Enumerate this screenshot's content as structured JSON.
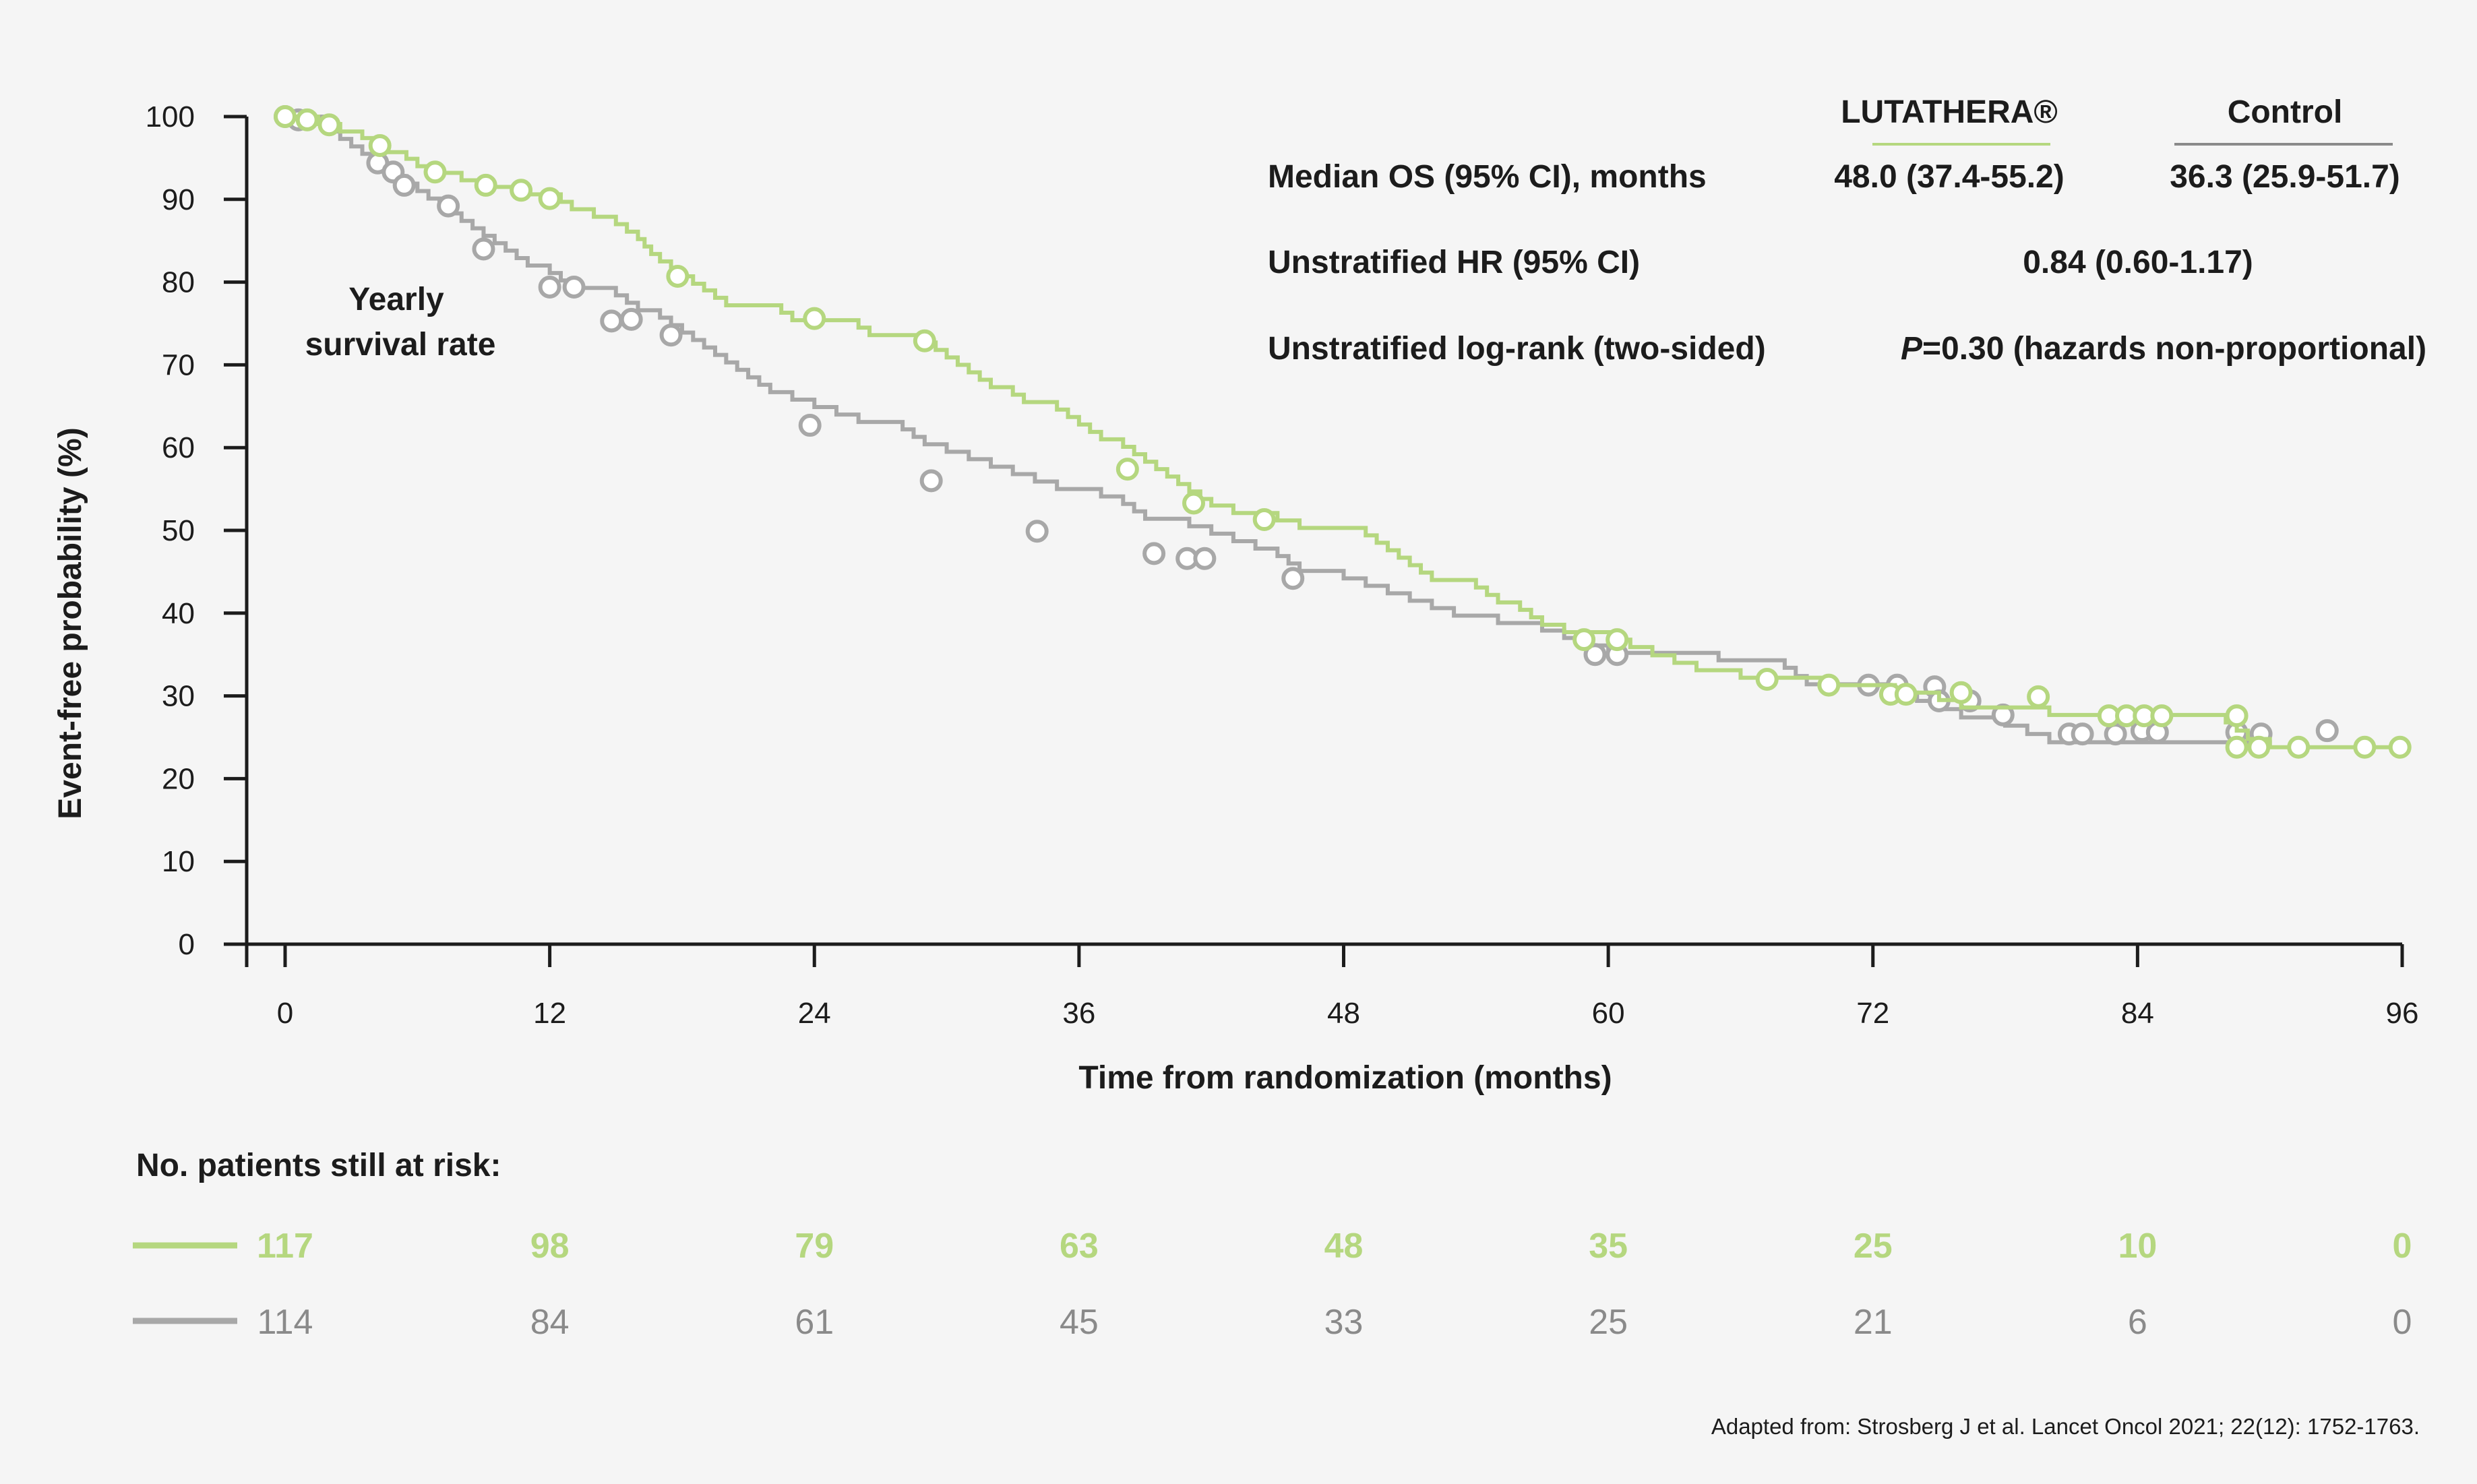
{
  "colors": {
    "lutathera": "#b5d77f",
    "control": "#a8a8a8",
    "control_text": "#8a8a8a",
    "axis": "#1c1c1c",
    "background": "#f5f5f5"
  },
  "annotation": {
    "line1": "Yearly",
    "line2": "survival rate"
  },
  "stats": {
    "header_lutathera": "LUTATHERA®",
    "header_control": "Control",
    "rows": [
      {
        "label": "Median OS (95% CI), months",
        "lutathera": "48.0 (37.4-55.2)",
        "control": "36.3 (25.9-51.7)"
      },
      {
        "label": "Unstratified HR (95% CI)",
        "value": "0.84 (0.60-1.17)"
      },
      {
        "label": "Unstratified log-rank (two-sided)",
        "p_italic": "P",
        "p_rest": "=0.30 (hazards non-proportional)"
      }
    ]
  },
  "risk_table": {
    "title": "No. patients still at risk:",
    "lutathera": [
      "117",
      "98",
      "79",
      "63",
      "48",
      "35",
      "25",
      "10",
      "0"
    ],
    "control": [
      "114",
      "84",
      "61",
      "45",
      "33",
      "25",
      "21",
      "6",
      "0"
    ]
  },
  "source": "Adapted from: Strosberg J et al. Lancet Oncol 2021; 22(12): 1752-1763.",
  "chart_data": {
    "type": "line",
    "subtype": "kaplan-meier step",
    "xlabel": "Time from randomization (months)",
    "ylabel": "Event-free probability (%)",
    "xlim": [
      0,
      96
    ],
    "ylim": [
      0,
      100
    ],
    "x_ticks": [
      0,
      12,
      24,
      36,
      48,
      60,
      72,
      84,
      96
    ],
    "y_ticks": [
      0,
      10,
      20,
      30,
      40,
      50,
      60,
      70,
      80,
      90,
      100
    ],
    "grid": false,
    "series": [
      {
        "name": "LUTATHERA®",
        "steps": [
          [
            0,
            100
          ],
          [
            1.5,
            99.1
          ],
          [
            2.5,
            98.2
          ],
          [
            3.5,
            97.4
          ],
          [
            4.5,
            95.7
          ],
          [
            5.5,
            94.9
          ],
          [
            6,
            94
          ],
          [
            7,
            93.2
          ],
          [
            8,
            92.3
          ],
          [
            9,
            91.5
          ],
          [
            11,
            90.6
          ],
          [
            12.5,
            89.7
          ],
          [
            13,
            88.8
          ],
          [
            14,
            87.9
          ],
          [
            15,
            87
          ],
          [
            15.5,
            86.1
          ],
          [
            16,
            85.2
          ],
          [
            16.3,
            84.3
          ],
          [
            16.6,
            83.4
          ],
          [
            17,
            82.5
          ],
          [
            17.5,
            81.6
          ],
          [
            18,
            80.7
          ],
          [
            18.5,
            79.8
          ],
          [
            19,
            79
          ],
          [
            19.5,
            78.1
          ],
          [
            20,
            77.2
          ],
          [
            22.5,
            76.3
          ],
          [
            23,
            75.4
          ],
          [
            26,
            74.5
          ],
          [
            26.5,
            73.6
          ],
          [
            29,
            72.7
          ],
          [
            29.5,
            71.8
          ],
          [
            30,
            70.9
          ],
          [
            30.5,
            70
          ],
          [
            31,
            69.1
          ],
          [
            31.5,
            68.2
          ],
          [
            32,
            67.3
          ],
          [
            33,
            66.4
          ],
          [
            33.5,
            65.5
          ],
          [
            35,
            64.6
          ],
          [
            35.5,
            63.7
          ],
          [
            36,
            62.8
          ],
          [
            36.5,
            61.9
          ],
          [
            37,
            61
          ],
          [
            38,
            60.1
          ],
          [
            38.5,
            59.2
          ],
          [
            39,
            58.3
          ],
          [
            39.5,
            57.4
          ],
          [
            40,
            56.5
          ],
          [
            40.5,
            55.6
          ],
          [
            41,
            54.7
          ],
          [
            41.5,
            53.8
          ],
          [
            42,
            53
          ],
          [
            43,
            52.1
          ],
          [
            45,
            51.2
          ],
          [
            46,
            50.3
          ],
          [
            49,
            49.4
          ],
          [
            49.5,
            48.5
          ],
          [
            50,
            47.6
          ],
          [
            50.5,
            46.7
          ],
          [
            51,
            45.8
          ],
          [
            51.5,
            44.9
          ],
          [
            52,
            44
          ],
          [
            54,
            43.1
          ],
          [
            54.5,
            42.2
          ],
          [
            55,
            41.3
          ],
          [
            56,
            40.4
          ],
          [
            56.5,
            39.5
          ],
          [
            57,
            38.6
          ],
          [
            58,
            37.7
          ],
          [
            60.5,
            36.8
          ],
          [
            61,
            35.9
          ],
          [
            62,
            34.9
          ],
          [
            63,
            34
          ],
          [
            64,
            33.1
          ],
          [
            66,
            32.2
          ],
          [
            70,
            31.3
          ],
          [
            73,
            30.4
          ],
          [
            75,
            29.5
          ],
          [
            76,
            28.6
          ],
          [
            80,
            27.7
          ],
          [
            88,
            26.8
          ],
          [
            88.5,
            25.8
          ],
          [
            89,
            24.8
          ],
          [
            90,
            23.8
          ],
          [
            96,
            23.8
          ]
        ],
        "censored": [
          [
            0,
            100
          ],
          [
            1,
            99.6
          ],
          [
            2,
            99
          ],
          [
            4.3,
            96.5
          ],
          [
            6.8,
            93.3
          ],
          [
            9.1,
            91.7
          ],
          [
            10.7,
            91.1
          ],
          [
            12,
            90.1
          ],
          [
            17.8,
            80.7
          ],
          [
            24,
            75.6
          ],
          [
            29,
            72.9
          ],
          [
            38.2,
            57.4
          ],
          [
            41.2,
            53.3
          ],
          [
            44.4,
            51.3
          ],
          [
            58.9,
            36.8
          ],
          [
            60.4,
            36.8
          ],
          [
            67.2,
            32
          ],
          [
            70,
            31.3
          ],
          [
            72.8,
            30.2
          ],
          [
            73.5,
            30.2
          ],
          [
            76,
            30.4
          ],
          [
            79.5,
            29.9
          ],
          [
            82.7,
            27.6
          ],
          [
            83.5,
            27.6
          ],
          [
            84.3,
            27.6
          ],
          [
            85.1,
            27.6
          ],
          [
            88.5,
            27.6
          ],
          [
            88.5,
            23.8
          ],
          [
            89.5,
            23.8
          ],
          [
            91.3,
            23.8
          ],
          [
            94.3,
            23.8
          ],
          [
            95.9,
            23.8
          ]
        ]
      },
      {
        "name": "Control",
        "steps": [
          [
            0,
            100
          ],
          [
            2,
            98.2
          ],
          [
            2.5,
            97.3
          ],
          [
            3,
            96.4
          ],
          [
            3.5,
            95.5
          ],
          [
            4,
            94.6
          ],
          [
            4.5,
            93.7
          ],
          [
            5,
            92.8
          ],
          [
            5.5,
            91.9
          ],
          [
            6,
            91
          ],
          [
            6.5,
            90.1
          ],
          [
            7,
            89.2
          ],
          [
            7.5,
            88.3
          ],
          [
            8,
            87.4
          ],
          [
            8.5,
            86.5
          ],
          [
            9,
            85.6
          ],
          [
            9.5,
            84.7
          ],
          [
            10,
            83.8
          ],
          [
            10.5,
            82.9
          ],
          [
            11,
            82
          ],
          [
            12,
            81.1
          ],
          [
            12.5,
            80.2
          ],
          [
            13,
            79.3
          ],
          [
            15,
            78.4
          ],
          [
            15.5,
            77.5
          ],
          [
            16,
            76.6
          ],
          [
            17,
            75.7
          ],
          [
            17.5,
            74.8
          ],
          [
            18,
            73.9
          ],
          [
            18.5,
            73
          ],
          [
            19,
            72.1
          ],
          [
            19.5,
            71.2
          ],
          [
            20,
            70.3
          ],
          [
            20.5,
            69.4
          ],
          [
            21,
            68.5
          ],
          [
            21.5,
            67.6
          ],
          [
            22,
            66.7
          ],
          [
            23,
            65.8
          ],
          [
            24,
            64.9
          ],
          [
            25,
            64
          ],
          [
            26,
            63.1
          ],
          [
            28,
            62.2
          ],
          [
            28.5,
            61.3
          ],
          [
            29,
            60.4
          ],
          [
            30,
            59.5
          ],
          [
            31,
            58.6
          ],
          [
            32,
            57.7
          ],
          [
            33,
            56.8
          ],
          [
            34,
            55.9
          ],
          [
            35,
            55
          ],
          [
            37,
            54.1
          ],
          [
            38,
            53.2
          ],
          [
            38.5,
            52.3
          ],
          [
            39,
            51.4
          ],
          [
            41,
            50.5
          ],
          [
            42,
            49.6
          ],
          [
            43,
            48.7
          ],
          [
            44,
            47.8
          ],
          [
            45,
            46.9
          ],
          [
            45.5,
            46
          ],
          [
            46,
            45.1
          ],
          [
            48,
            44.2
          ],
          [
            49,
            43.3
          ],
          [
            50,
            42.4
          ],
          [
            51,
            41.5
          ],
          [
            52,
            40.6
          ],
          [
            53,
            39.7
          ],
          [
            55,
            38.8
          ],
          [
            57,
            37.9
          ],
          [
            58,
            37
          ],
          [
            59,
            36.1
          ],
          [
            60,
            35.2
          ],
          [
            65,
            34.3
          ],
          [
            68,
            33.4
          ],
          [
            68.5,
            32.4
          ],
          [
            69,
            31.4
          ],
          [
            73,
            30.4
          ],
          [
            74,
            29.4
          ],
          [
            75,
            28.4
          ],
          [
            76,
            27.4
          ],
          [
            78,
            26.4
          ],
          [
            79,
            25.4
          ],
          [
            80,
            24.4
          ],
          [
            90,
            23.8
          ]
        ],
        "censored": [
          [
            0,
            100
          ],
          [
            0.6,
            99.6
          ],
          [
            4.2,
            94.4
          ],
          [
            4.9,
            93.3
          ],
          [
            5.4,
            91.7
          ],
          [
            7.4,
            89.2
          ],
          [
            9,
            84
          ],
          [
            12,
            79.4
          ],
          [
            13.1,
            79.4
          ],
          [
            14.8,
            75.3
          ],
          [
            15.7,
            75.5
          ],
          [
            17.5,
            73.6
          ],
          [
            23.8,
            62.7
          ],
          [
            29.3,
            56
          ],
          [
            34.1,
            49.9
          ],
          [
            39.4,
            47.2
          ],
          [
            40.9,
            46.6
          ],
          [
            41.7,
            46.6
          ],
          [
            45.7,
            44.2
          ],
          [
            59.4,
            35
          ],
          [
            60.4,
            35
          ],
          [
            71.8,
            31.3
          ],
          [
            73.1,
            31.3
          ],
          [
            74.8,
            31.1
          ],
          [
            75,
            29.4
          ],
          [
            76.4,
            29.4
          ],
          [
            77.9,
            27.7
          ],
          [
            80.9,
            25.4
          ],
          [
            81.5,
            25.4
          ],
          [
            83,
            25.4
          ],
          [
            84.2,
            25.8
          ],
          [
            84.9,
            25.6
          ],
          [
            88.5,
            25.6
          ],
          [
            89.6,
            25.4
          ],
          [
            92.6,
            25.8
          ]
        ]
      }
    ]
  }
}
